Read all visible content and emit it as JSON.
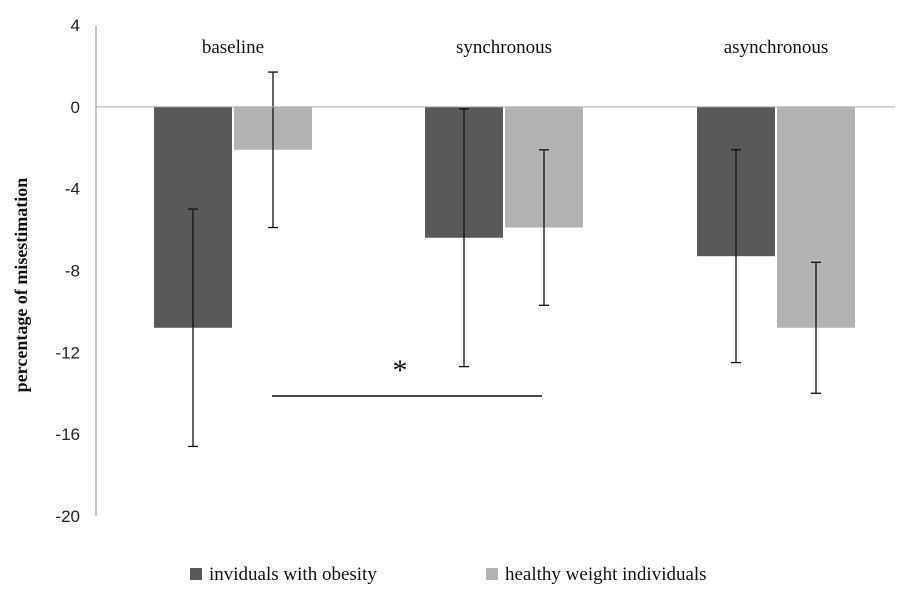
{
  "chart_data": {
    "type": "bar",
    "title": "",
    "xlabel": "",
    "ylabel": "percentage of misestimation",
    "ylim": [
      -20,
      4
    ],
    "yticks": [
      4,
      0,
      -4,
      -8,
      -12,
      -16,
      -20
    ],
    "categories": [
      "baseline",
      "synchronous",
      "asynchronous"
    ],
    "series": [
      {
        "name": "inviduals with obesity",
        "color": "#595959",
        "values": [
          -10.8,
          -6.4,
          -7.3
        ],
        "error": [
          5.8,
          6.3,
          5.2
        ]
      },
      {
        "name": "healthy weight individuals",
        "color": "#b3b3b3",
        "values": [
          -2.1,
          -5.9,
          -10.8
        ],
        "error": [
          3.8,
          3.8,
          3.2
        ]
      }
    ],
    "legend_position": "bottom",
    "grid": false,
    "annotations": [
      {
        "text": "*",
        "type": "significance",
        "between": [
          "baseline inviduals with obesity",
          "synchronous healthy weight individuals"
        ]
      }
    ]
  }
}
